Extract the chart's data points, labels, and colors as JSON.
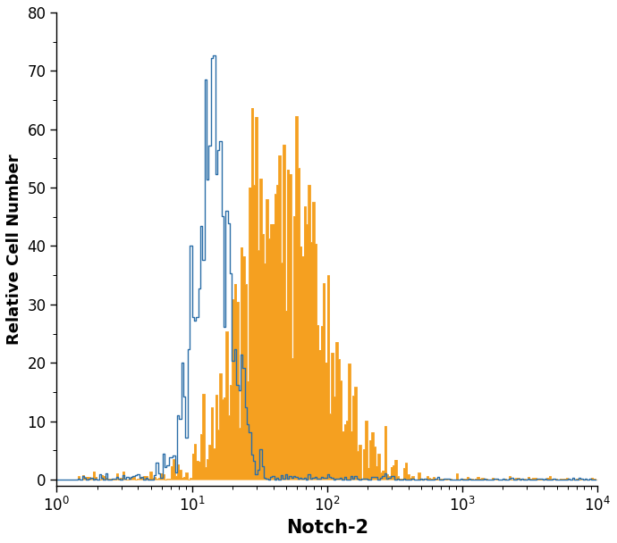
{
  "title": "",
  "xlabel": "Notch-2",
  "ylabel": "Relative Cell Number",
  "xlim": [
    1,
    10000
  ],
  "ylim": [
    -1,
    80
  ],
  "yticks": [
    0,
    10,
    20,
    30,
    40,
    50,
    60,
    70,
    80
  ],
  "blue_color": "#2b6ea8",
  "orange_color": "#f5a020",
  "background_color": "#ffffff",
  "blue_peak_log": 1.15,
  "blue_sigma_log": 0.13,
  "blue_amplitude": 56,
  "orange_peak_log": 1.62,
  "orange_sigma_log": 0.25,
  "orange_amplitude": 54,
  "n_bins": 256,
  "xlabel_fontsize": 15,
  "ylabel_fontsize": 13,
  "tick_fontsize": 12,
  "figsize": [
    6.9,
    6.08
  ],
  "dpi": 100
}
